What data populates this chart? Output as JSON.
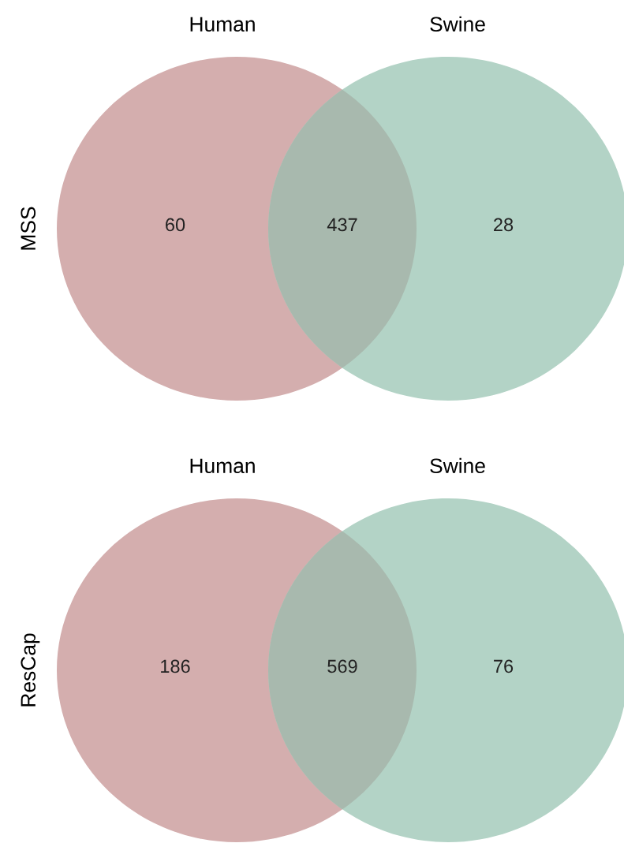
{
  "chart_data": [
    {
      "type": "other",
      "ylabel": "MSS",
      "annotations": [
        "Human",
        "Swine"
      ],
      "categories": [
        null,
        null,
        null
      ],
      "colors": [
        "#d4aeae",
        "#a8b9ae",
        "#b3d3c6"
      ],
      "values": [
        60,
        437,
        28
      ],
      "data_labels": true
    },
    {
      "type": "other",
      "ylabel": "ResCap",
      "annotations": [
        "Human",
        "Swine"
      ],
      "categories": [
        null,
        null,
        null
      ],
      "colors": [
        "#d4aeae",
        "#a8b9ae",
        "#b3d3c6"
      ],
      "values": [
        186,
        569,
        76
      ],
      "data_labels": true
    }
  ]
}
